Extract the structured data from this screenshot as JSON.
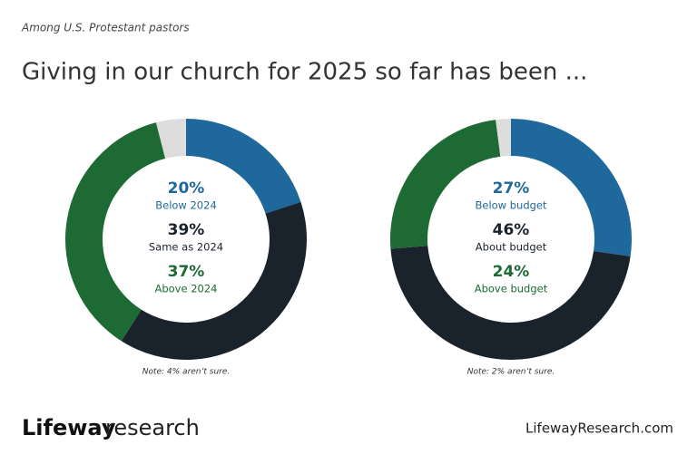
{
  "subtitle": "Among U.S. Protestant pastors",
  "title": "Giving in our church for 2025 so far has been ...",
  "logo": {
    "name": "Lifeway",
    "word": "research"
  },
  "url": "LifewayResearch.com",
  "chart_data": [
    {
      "type": "donut",
      "categories": [
        "Below 2024",
        "Same as 2024",
        "Above 2024",
        null
      ],
      "values": [
        20,
        39,
        37,
        4
      ],
      "value_labels": [
        "20%",
        "39%",
        "37%",
        null
      ],
      "colors": [
        "#1f689b",
        "#1a222c",
        "#1d6a34",
        "#dddddd"
      ],
      "note": "Note: 4% aren’t sure."
    },
    {
      "type": "donut",
      "categories": [
        "Below budget",
        "About budget",
        "Above budget",
        null
      ],
      "values": [
        27,
        46,
        24,
        2
      ],
      "value_labels": [
        "27%",
        "46%",
        "24%",
        null
      ],
      "colors": [
        "#1f689b",
        "#1a222c",
        "#1d6a34",
        "#dddddd"
      ],
      "note": "Note: 2% aren’t sure."
    }
  ]
}
